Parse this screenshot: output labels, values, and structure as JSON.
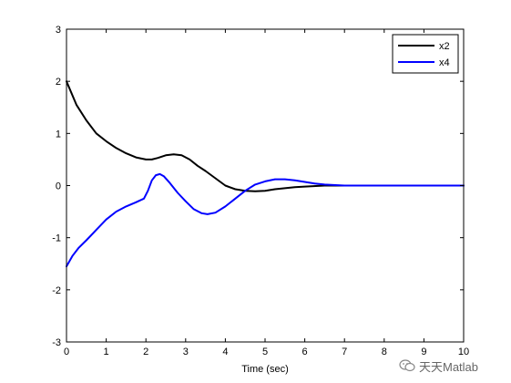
{
  "chart_data": {
    "type": "line",
    "title": "",
    "xlabel": "Time (sec)",
    "ylabel": "",
    "xlim": [
      0,
      10
    ],
    "ylim": [
      -3,
      3
    ],
    "xticks": [
      0,
      1,
      2,
      3,
      4,
      5,
      6,
      7,
      8,
      9,
      10
    ],
    "yticks": [
      -3,
      -2,
      -1,
      0,
      1,
      2,
      3
    ],
    "grid": false,
    "legend_position": "top-right",
    "series": [
      {
        "name": "x2",
        "color": "#000000",
        "x": [
          0,
          0.25,
          0.5,
          0.75,
          1.0,
          1.25,
          1.5,
          1.75,
          2.0,
          2.15,
          2.3,
          2.5,
          2.7,
          2.9,
          3.1,
          3.3,
          3.5,
          3.75,
          4.0,
          4.25,
          4.5,
          4.75,
          5.0,
          5.25,
          5.5,
          5.75,
          6.0,
          6.5,
          7.0,
          7.5,
          8.0,
          9.0,
          10.0
        ],
        "y": [
          2.0,
          1.55,
          1.25,
          1.0,
          0.85,
          0.72,
          0.62,
          0.54,
          0.5,
          0.5,
          0.53,
          0.58,
          0.6,
          0.58,
          0.5,
          0.38,
          0.28,
          0.14,
          0.0,
          -0.07,
          -0.1,
          -0.11,
          -0.1,
          -0.07,
          -0.05,
          -0.03,
          -0.02,
          0.0,
          0.0,
          0.0,
          0.0,
          0.0,
          0.0
        ]
      },
      {
        "name": "x4",
        "color": "#0000ff",
        "x": [
          0,
          0.15,
          0.3,
          0.5,
          0.75,
          1.0,
          1.25,
          1.5,
          1.75,
          1.95,
          2.05,
          2.15,
          2.25,
          2.35,
          2.45,
          2.6,
          2.8,
          3.0,
          3.2,
          3.4,
          3.55,
          3.75,
          4.0,
          4.25,
          4.5,
          4.75,
          5.0,
          5.25,
          5.5,
          5.75,
          6.0,
          6.25,
          6.5,
          7.0,
          7.5,
          8.0,
          9.0,
          10.0
        ],
        "y": [
          -1.55,
          -1.35,
          -1.2,
          -1.05,
          -0.85,
          -0.65,
          -0.5,
          -0.4,
          -0.32,
          -0.25,
          -0.1,
          0.1,
          0.2,
          0.22,
          0.18,
          0.05,
          -0.14,
          -0.3,
          -0.45,
          -0.53,
          -0.55,
          -0.52,
          -0.4,
          -0.25,
          -0.1,
          0.02,
          0.08,
          0.12,
          0.12,
          0.1,
          0.07,
          0.04,
          0.02,
          0.0,
          0.0,
          0.0,
          0.0,
          0.0
        ]
      }
    ]
  },
  "watermark": {
    "text": "天天Matlab",
    "icon": "wechat-logo-icon"
  }
}
